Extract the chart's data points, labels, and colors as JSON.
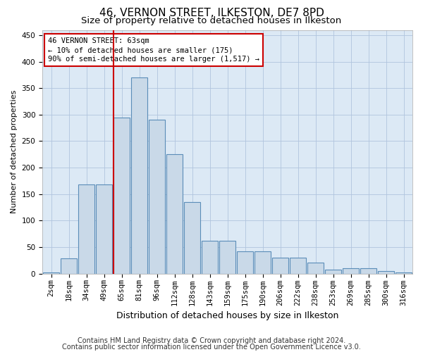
{
  "title": "46, VERNON STREET, ILKESTON, DE7 8PD",
  "subtitle": "Size of property relative to detached houses in Ilkeston",
  "xlabel": "Distribution of detached houses by size in Ilkeston",
  "ylabel": "Number of detached properties",
  "categories": [
    "2sqm",
    "18sqm",
    "34sqm",
    "49sqm",
    "65sqm",
    "81sqm",
    "96sqm",
    "112sqm",
    "128sqm",
    "143sqm",
    "159sqm",
    "175sqm",
    "190sqm",
    "206sqm",
    "222sqm",
    "238sqm",
    "253sqm",
    "269sqm",
    "285sqm",
    "300sqm",
    "316sqm"
  ],
  "values": [
    2,
    28,
    168,
    168,
    295,
    370,
    290,
    225,
    135,
    62,
    62,
    42,
    42,
    30,
    30,
    20,
    8,
    10,
    10,
    5,
    2
  ],
  "bar_color": "#c9d9e8",
  "bar_edge_color": "#5b8db8",
  "vline_color": "#cc0000",
  "annotation_line1": "46 VERNON STREET: 63sqm",
  "annotation_line2": "← 10% of detached houses are smaller (175)",
  "annotation_line3": "90% of semi-detached houses are larger (1,517) →",
  "annotation_box_color": "#ffffff",
  "annotation_box_edge": "#cc0000",
  "footer1": "Contains HM Land Registry data © Crown copyright and database right 2024.",
  "footer2": "Contains public sector information licensed under the Open Government Licence v3.0.",
  "ylim": [
    0,
    460
  ],
  "yticks": [
    0,
    50,
    100,
    150,
    200,
    250,
    300,
    350,
    400,
    450
  ],
  "grid_color": "#b0c4de",
  "bg_color": "#dce9f5",
  "title_fontsize": 11,
  "subtitle_fontsize": 9.5,
  "xlabel_fontsize": 9,
  "ylabel_fontsize": 8,
  "tick_fontsize": 7.5,
  "annot_fontsize": 7.5,
  "footer_fontsize": 7
}
